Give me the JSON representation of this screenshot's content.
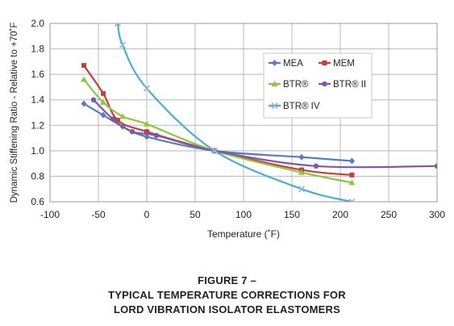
{
  "figure": {
    "number": "FIGURE 7 –",
    "caption_line1": "TYPICAL TEMPERATURE CORRECTIONS FOR",
    "caption_line2": "LORD VIBRATION ISOLATOR ELASTOMERS"
  },
  "chart_data": {
    "type": "line",
    "xlabel": "Temperature (˚F)",
    "ylabel": "Dynamic Stiffening Ratio - Relative to +70˚F",
    "xlim": [
      -100,
      300
    ],
    "ylim": [
      0.6,
      2.0
    ],
    "xticks": [
      -100,
      -50,
      0,
      50,
      100,
      150,
      200,
      250,
      300
    ],
    "yticks": [
      "0.6",
      "0.8",
      "1.0",
      "1.2",
      "1.4",
      "1.6",
      "1.8",
      "2.0"
    ],
    "grid": true,
    "legend_position": "right",
    "series": [
      {
        "name": "MEA",
        "color": "#5b7bc0",
        "marker": "diamond",
        "points": [
          [
            -65,
            1.37
          ],
          [
            -45,
            1.28
          ],
          [
            -25,
            1.19
          ],
          [
            0,
            1.11
          ],
          [
            70,
            1.0
          ],
          [
            160,
            0.95
          ],
          [
            212,
            0.92
          ]
        ]
      },
      {
        "name": "MEM",
        "color": "#c0403a",
        "marker": "square",
        "points": [
          [
            -65,
            1.67
          ],
          [
            -45,
            1.45
          ],
          [
            -30,
            1.24
          ],
          [
            0,
            1.15
          ],
          [
            70,
            1.0
          ],
          [
            160,
            0.85
          ],
          [
            212,
            0.81
          ]
        ]
      },
      {
        "name": "BTR®",
        "color": "#8dc63f",
        "marker": "triangle",
        "points": [
          [
            -65,
            1.56
          ],
          [
            -45,
            1.38
          ],
          [
            -25,
            1.27
          ],
          [
            0,
            1.21
          ],
          [
            70,
            1.0
          ],
          [
            160,
            0.83
          ],
          [
            212,
            0.75
          ]
        ]
      },
      {
        "name": "BTR® II",
        "color": "#7e57a6",
        "marker": "circle",
        "points": [
          [
            -55,
            1.4
          ],
          [
            -35,
            1.25
          ],
          [
            -15,
            1.15
          ],
          [
            10,
            1.12
          ],
          [
            70,
            1.0
          ],
          [
            175,
            0.88
          ],
          [
            300,
            0.88
          ]
        ]
      },
      {
        "name": "BTR® IV",
        "color": "#4bacd4",
        "marker": "x",
        "points": [
          [
            -30,
            2.0
          ],
          [
            -25,
            1.83
          ],
          [
            0,
            1.49
          ],
          [
            70,
            1.0
          ],
          [
            160,
            0.7
          ],
          [
            212,
            0.6
          ]
        ]
      }
    ]
  }
}
